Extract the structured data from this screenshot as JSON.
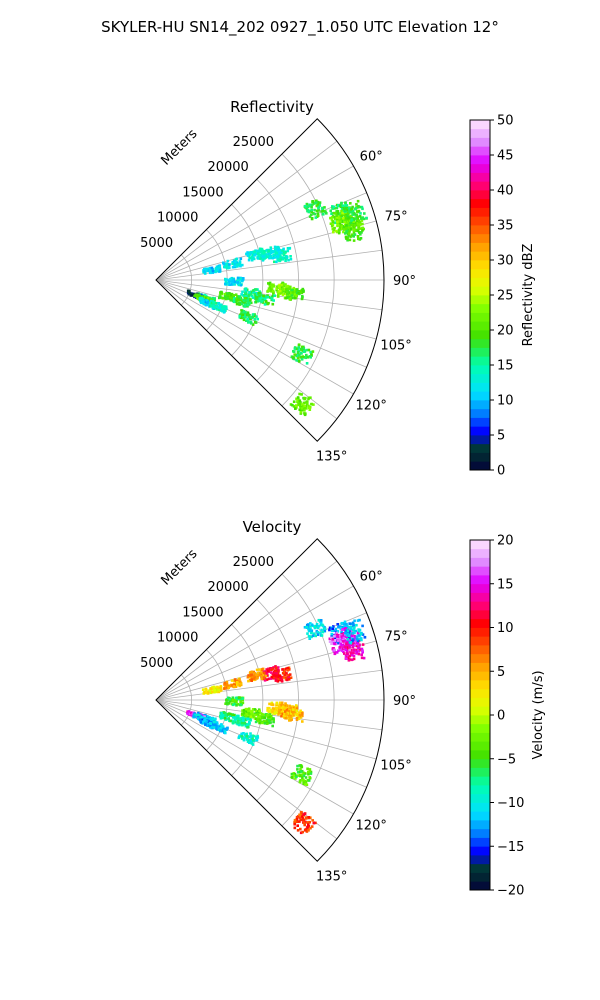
{
  "figure": {
    "title": "SKYLER-HU  SN14_202  0927_1.050 UTC Elevation 12°"
  },
  "chart_data": [
    {
      "type": "heatmap",
      "panel": "reflectivity",
      "title": "Reflectivity",
      "range_label": "Meters",
      "range_ticks": [
        5000,
        10000,
        15000,
        20000,
        25000
      ],
      "range_tick_labels": [
        "5000",
        "10000",
        "15000",
        "20000",
        "25000"
      ],
      "range_max": 32000,
      "azimuth_range_deg": [
        45,
        135
      ],
      "azimuth_ticks": [
        60,
        75,
        90,
        105,
        120,
        135
      ],
      "azimuth_tick_labels": [
        "60°",
        "75°",
        "90°",
        "105°",
        "120°",
        "135°"
      ],
      "grid": true,
      "colorbar": {
        "label": "Reflectivity dBZ",
        "min": 0,
        "max": 50,
        "ticks": [
          "0",
          "5",
          "10",
          "15",
          "20",
          "25",
          "30",
          "35",
          "40",
          "45",
          "50"
        ],
        "scale": "HomeyerRainbow (banded)"
      },
      "echoes": [
        {
          "az": 66,
          "r": 24500,
          "value": 18
        },
        {
          "az": 70,
          "r": 27500,
          "value": 17
        },
        {
          "az": 72,
          "r": 28000,
          "value": 20
        },
        {
          "az": 73,
          "r": 27000,
          "value": 22
        },
        {
          "az": 76,
          "r": 28500,
          "value": 19
        },
        {
          "az": 74,
          "r": 28800,
          "value": 21
        },
        {
          "az": 71,
          "r": 29500,
          "value": 18
        },
        {
          "az": 79,
          "r": 18000,
          "value": 14
        },
        {
          "az": 77,
          "r": 16500,
          "value": 13
        },
        {
          "az": 78,
          "r": 11000,
          "value": 12
        },
        {
          "az": 76,
          "r": 14500,
          "value": 13
        },
        {
          "az": 80,
          "r": 8000,
          "value": 11
        },
        {
          "az": 94,
          "r": 17000,
          "value": 21
        },
        {
          "az": 95,
          "r": 18500,
          "value": 23
        },
        {
          "az": 98,
          "r": 13500,
          "value": 15
        },
        {
          "az": 96,
          "r": 19500,
          "value": 20
        },
        {
          "az": 100,
          "r": 15500,
          "value": 17
        },
        {
          "az": 91,
          "r": 11000,
          "value": 12
        },
        {
          "az": 103,
          "r": 10500,
          "value": 20
        },
        {
          "az": 104,
          "r": 12500,
          "value": 18
        },
        {
          "az": 110,
          "r": 7500,
          "value": 16
        },
        {
          "az": 111,
          "r": 6000,
          "value": 4
        },
        {
          "az": 112,
          "r": 7000,
          "value": 20
        },
        {
          "az": 114,
          "r": 8000,
          "value": 11
        },
        {
          "az": 113,
          "r": 9500,
          "value": 14
        },
        {
          "az": 112,
          "r": 14000,
          "value": 17
        },
        {
          "az": 117,
          "r": 23000,
          "value": 18
        },
        {
          "az": 130,
          "r": 27000,
          "value": 21
        }
      ]
    },
    {
      "type": "heatmap",
      "panel": "velocity",
      "title": "Velocity",
      "range_label": "Meters",
      "range_ticks": [
        5000,
        10000,
        15000,
        20000,
        25000
      ],
      "range_tick_labels": [
        "5000",
        "10000",
        "15000",
        "20000",
        "25000"
      ],
      "range_max": 32000,
      "azimuth_range_deg": [
        45,
        135
      ],
      "azimuth_ticks": [
        60,
        75,
        90,
        105,
        120,
        135
      ],
      "azimuth_tick_labels": [
        "60°",
        "75°",
        "90°",
        "105°",
        "120°",
        "135°"
      ],
      "grid": true,
      "colorbar": {
        "label": "Velocity (m/s)",
        "min": -20,
        "max": 20,
        "ticks": [
          "−20",
          "−15",
          "−10",
          "−5",
          "0",
          "5",
          "10",
          "15",
          "20"
        ],
        "scale": "HomeyerRainbow (banded)"
      },
      "echoes": [
        {
          "az": 66,
          "r": 24500,
          "value": -11
        },
        {
          "az": 70,
          "r": 27500,
          "value": -13
        },
        {
          "az": 72,
          "r": 28000,
          "value": 15
        },
        {
          "az": 73,
          "r": 27000,
          "value": 16
        },
        {
          "az": 76,
          "r": 28500,
          "value": 14
        },
        {
          "az": 74,
          "r": 28800,
          "value": 15
        },
        {
          "az": 71,
          "r": 29500,
          "value": -12
        },
        {
          "az": 79,
          "r": 18000,
          "value": 10
        },
        {
          "az": 77,
          "r": 16500,
          "value": 11
        },
        {
          "az": 78,
          "r": 11000,
          "value": 5
        },
        {
          "az": 76,
          "r": 14500,
          "value": 6
        },
        {
          "az": 80,
          "r": 8000,
          "value": 2
        },
        {
          "az": 94,
          "r": 17000,
          "value": 3
        },
        {
          "az": 95,
          "r": 18500,
          "value": 5
        },
        {
          "az": 98,
          "r": 13500,
          "value": -3
        },
        {
          "az": 96,
          "r": 19500,
          "value": 4
        },
        {
          "az": 100,
          "r": 15500,
          "value": -4
        },
        {
          "az": 91,
          "r": 11000,
          "value": -5
        },
        {
          "az": 103,
          "r": 10500,
          "value": -7
        },
        {
          "az": 104,
          "r": 12500,
          "value": -8
        },
        {
          "az": 110,
          "r": 7500,
          "value": -12
        },
        {
          "az": 111,
          "r": 6000,
          "value": 16
        },
        {
          "az": 112,
          "r": 7000,
          "value": -11
        },
        {
          "az": 114,
          "r": 8000,
          "value": -13
        },
        {
          "az": 113,
          "r": 9500,
          "value": -12
        },
        {
          "az": 112,
          "r": 14000,
          "value": -9
        },
        {
          "az": 117,
          "r": 23000,
          "value": -4
        },
        {
          "az": 130,
          "r": 27000,
          "value": 9
        }
      ]
    }
  ]
}
